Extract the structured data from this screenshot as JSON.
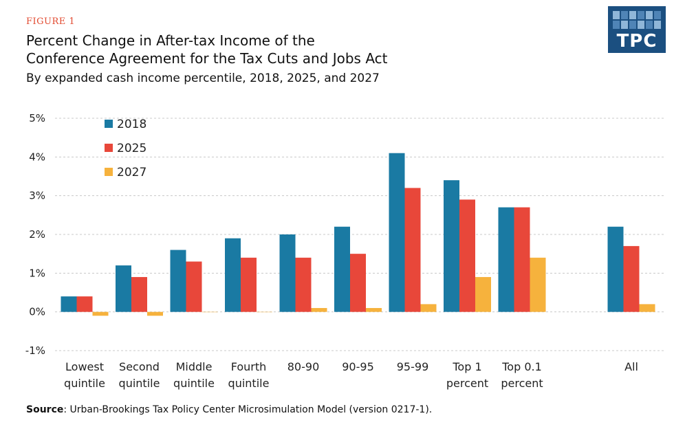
{
  "figure_label": "FIGURE 1",
  "title_lines": [
    "Percent Change in After-tax Income of the",
    "Conference Agreement for the Tax Cuts and Jobs Act"
  ],
  "subtitle": "By expanded cash income percentile, 2018, 2025, and 2027",
  "logo_text": "TPC",
  "source_label": "Source",
  "source_text": ": Urban-Brookings Tax Policy Center Microsimulation Model (version 0217-1).",
  "colors": {
    "2018": "#1a7aa3",
    "2025": "#e8473a",
    "2027": "#f6b23d",
    "figure_label": "#e2492f",
    "logo_bg": "#1b4f80"
  },
  "chart_data": {
    "type": "bar",
    "title": "Percent Change in After-tax Income of the Conference Agreement for the Tax Cuts and Jobs Act",
    "subtitle": "By expanded cash income percentile, 2018, 2025, and 2027",
    "xlabel": "",
    "ylabel": "",
    "ylim": [
      -1,
      5
    ],
    "yticks": [
      -1,
      0,
      1,
      2,
      3,
      4,
      5
    ],
    "ytick_labels": [
      "-1%",
      "0%",
      "1%",
      "2%",
      "3%",
      "4%",
      "5%"
    ],
    "grid": true,
    "legend_position": "top-left",
    "categories": [
      [
        "Lowest",
        "quintile"
      ],
      [
        "Second",
        "quintile"
      ],
      [
        "Middle",
        "quintile"
      ],
      [
        "Fourth",
        "quintile"
      ],
      [
        "80-90"
      ],
      [
        "90-95"
      ],
      [
        "95-99"
      ],
      [
        "Top 1",
        "percent"
      ],
      [
        "Top 0.1",
        "percent"
      ],
      [
        "All"
      ]
    ],
    "series": [
      {
        "name": "2018",
        "values": [
          0.4,
          1.2,
          1.6,
          1.9,
          2.0,
          2.2,
          4.1,
          3.4,
          2.7,
          2.2
        ]
      },
      {
        "name": "2025",
        "values": [
          0.4,
          0.9,
          1.3,
          1.4,
          1.4,
          1.5,
          3.2,
          2.9,
          2.7,
          1.7
        ]
      },
      {
        "name": "2027",
        "values": [
          -0.1,
          -0.1,
          0.0,
          0.0,
          0.1,
          0.1,
          0.2,
          0.9,
          1.4,
          0.2
        ]
      }
    ]
  }
}
